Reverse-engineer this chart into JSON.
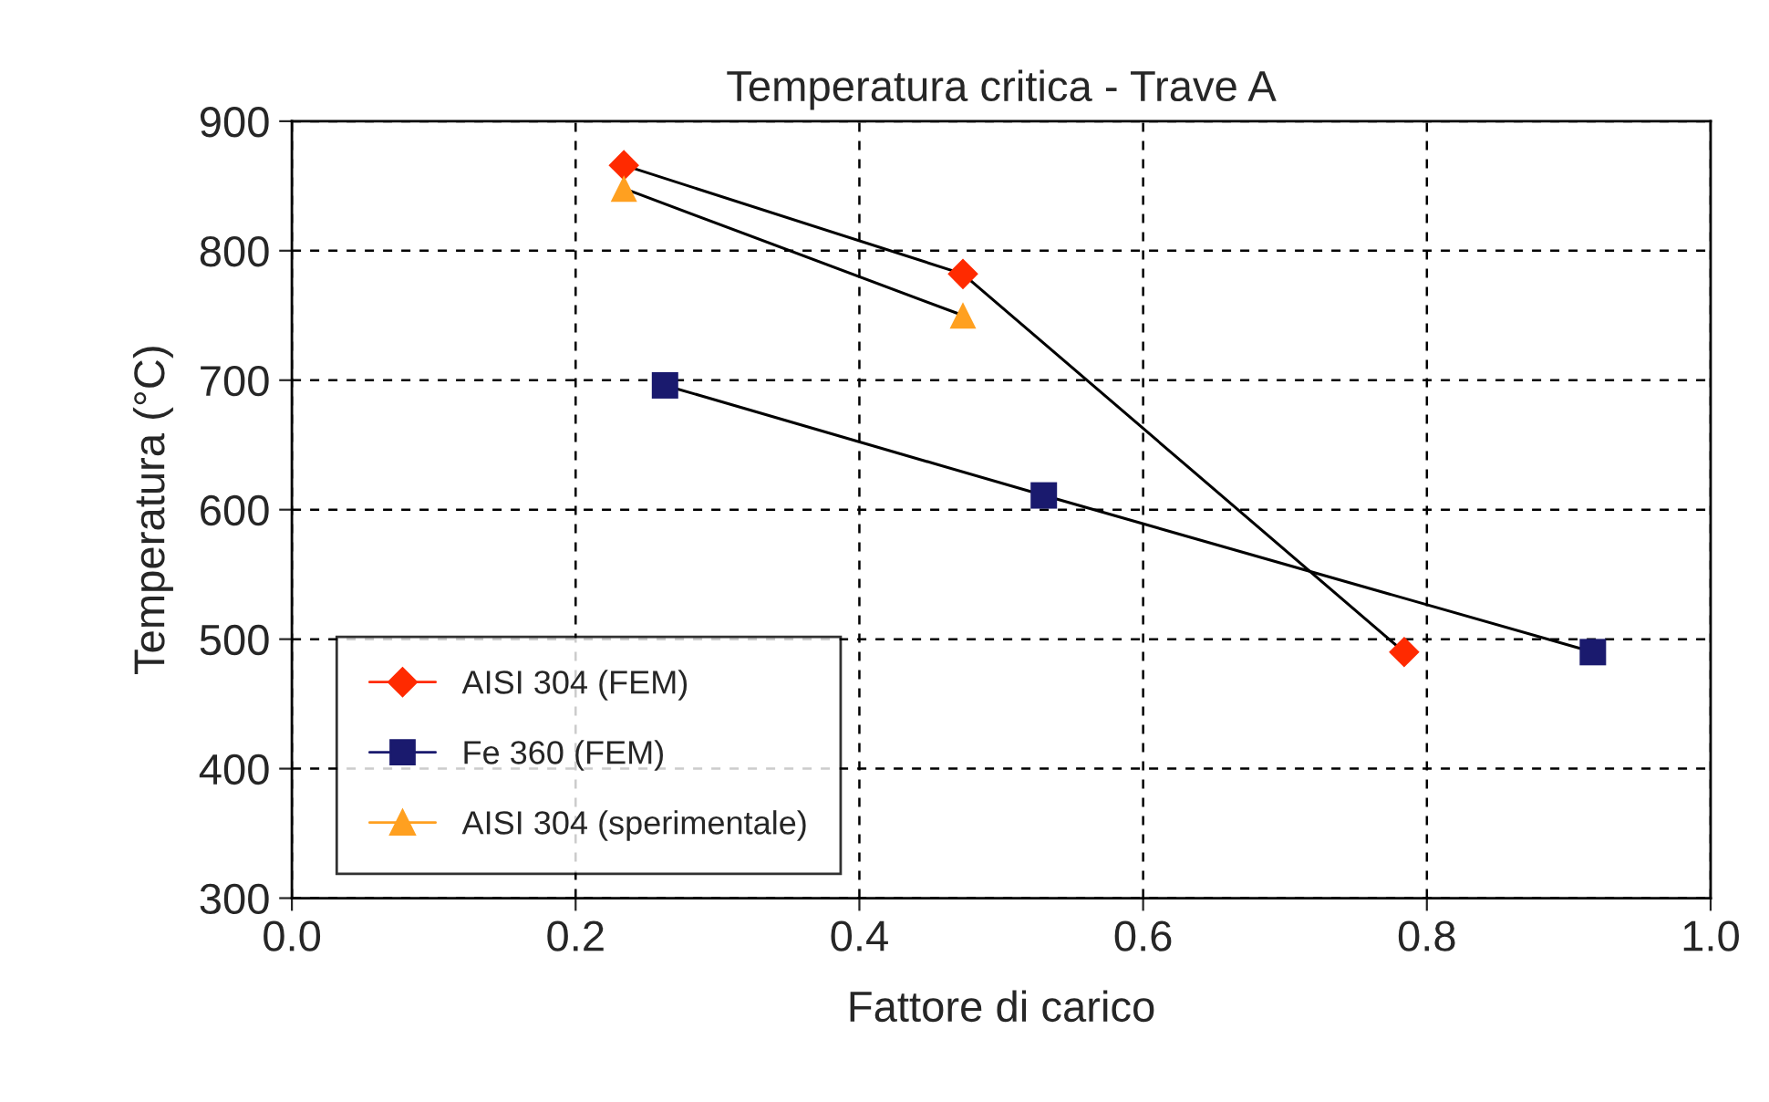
{
  "chart_data": {
    "type": "line",
    "title": "Temperatura critica - Trave A",
    "xlabel": "Fattore di carico",
    "ylabel": "Temperatura (°C)",
    "xlim": [
      0.0,
      1.0
    ],
    "xticks": [
      {
        "value": 0.0,
        "label": "0.0"
      },
      {
        "value": 0.2,
        "label": "0.2"
      },
      {
        "value": 0.4,
        "label": "0.4"
      },
      {
        "value": 0.6,
        "label": "0.6"
      },
      {
        "value": 0.8,
        "label": "0.8"
      },
      {
        "value": 1.0,
        "label": "1.0"
      }
    ],
    "ylim": [
      300,
      900
    ],
    "yticks": [
      300,
      400,
      500,
      600,
      700,
      800,
      900
    ],
    "grid": true,
    "legend": "bottom left",
    "line_style": "solid",
    "series": [
      {
        "name": "AISI 304 (FEM)",
        "color": "#ff2a00",
        "marker": "diamond",
        "x": [
          0.234,
          0.473,
          0.784
        ],
        "values": [
          866,
          782,
          490
        ]
      },
      {
        "name": "Fe 360 (FEM)",
        "color": "#1a1a6e",
        "marker": "square",
        "x": [
          0.263,
          0.53,
          0.917
        ],
        "values": [
          696,
          611,
          490
        ]
      },
      {
        "name": "AISI 304 (sperimentale)",
        "color": "#ffa020",
        "marker": "triangle",
        "x": [
          0.234,
          0.473
        ],
        "values": [
          848,
          750
        ]
      }
    ]
  }
}
